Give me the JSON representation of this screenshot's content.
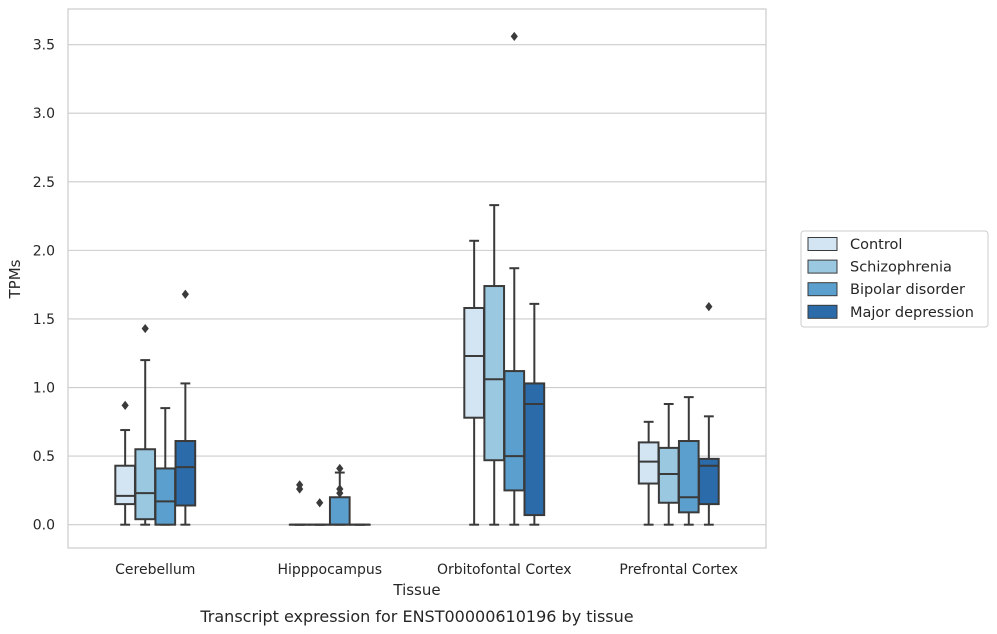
{
  "chart_data": {
    "type": "boxplot",
    "caption": "Transcript expression for ENST00000610196 by tissue",
    "xlabel": "Tissue",
    "ylabel": "TPMs",
    "ylim": [
      -0.17,
      3.76
    ],
    "yticks": [
      0.0,
      0.5,
      1.0,
      1.5,
      2.0,
      2.5,
      3.0,
      3.5
    ],
    "ytick_labels": [
      "0.0",
      "0.5",
      "1.0",
      "1.5",
      "2.0",
      "2.5",
      "3.0",
      "3.5"
    ],
    "grid": "horizontal",
    "legend_position": "right",
    "categories": [
      "Cerebellum",
      "Hipppocampus",
      "Orbitofontal Cortex",
      "Prefrontal Cortex"
    ],
    "series": [
      {
        "name": "Control",
        "color": "#d3e4f3",
        "boxes": [
          {
            "whislo": 0.0,
            "q1": 0.15,
            "med": 0.21,
            "q3": 0.43,
            "whishi": 0.69,
            "fliers": [
              0.87
            ]
          },
          {
            "whislo": 0.0,
            "q1": 0.0,
            "med": 0.0,
            "q3": 0.0,
            "whishi": 0.0,
            "fliers": [
              0.26,
              0.29
            ]
          },
          {
            "whislo": 0.0,
            "q1": 0.78,
            "med": 1.23,
            "q3": 1.58,
            "whishi": 2.07,
            "fliers": []
          },
          {
            "whislo": 0.0,
            "q1": 0.3,
            "med": 0.46,
            "q3": 0.6,
            "whishi": 0.75,
            "fliers": []
          }
        ]
      },
      {
        "name": "Schizophrenia",
        "color": "#9ac8e0",
        "boxes": [
          {
            "whislo": 0.0,
            "q1": 0.04,
            "med": 0.23,
            "q3": 0.55,
            "whishi": 1.2,
            "fliers": [
              1.43
            ]
          },
          {
            "whislo": 0.0,
            "q1": 0.0,
            "med": 0.0,
            "q3": 0.0,
            "whishi": 0.0,
            "fliers": [
              0.16
            ]
          },
          {
            "whislo": 0.0,
            "q1": 0.47,
            "med": 1.06,
            "q3": 1.74,
            "whishi": 2.33,
            "fliers": []
          },
          {
            "whislo": 0.0,
            "q1": 0.16,
            "med": 0.37,
            "q3": 0.56,
            "whishi": 0.88,
            "fliers": []
          }
        ]
      },
      {
        "name": "Bipolar disorder",
        "color": "#5a9fcd",
        "boxes": [
          {
            "whislo": 0.0,
            "q1": 0.0,
            "med": 0.17,
            "q3": 0.41,
            "whishi": 0.85,
            "fliers": []
          },
          {
            "whislo": 0.0,
            "q1": 0.0,
            "med": 0.0,
            "q3": 0.2,
            "whishi": 0.38,
            "fliers": [
              0.23,
              0.26,
              0.41
            ]
          },
          {
            "whislo": 0.0,
            "q1": 0.25,
            "med": 0.5,
            "q3": 1.12,
            "whishi": 1.87,
            "fliers": [
              3.56
            ]
          },
          {
            "whislo": 0.0,
            "q1": 0.09,
            "med": 0.2,
            "q3": 0.61,
            "whishi": 0.93,
            "fliers": []
          }
        ]
      },
      {
        "name": "Major depression",
        "color": "#2b6ba9",
        "boxes": [
          {
            "whislo": 0.0,
            "q1": 0.14,
            "med": 0.42,
            "q3": 0.61,
            "whishi": 1.03,
            "fliers": [
              1.68
            ]
          },
          {
            "whislo": 0.0,
            "q1": 0.0,
            "med": 0.0,
            "q3": 0.0,
            "whishi": 0.0,
            "fliers": []
          },
          {
            "whislo": 0.0,
            "q1": 0.07,
            "med": 0.88,
            "q3": 1.03,
            "whishi": 1.61,
            "fliers": []
          },
          {
            "whislo": 0.0,
            "q1": 0.15,
            "med": 0.43,
            "q3": 0.48,
            "whishi": 0.79,
            "fliers": [
              1.59
            ]
          }
        ]
      }
    ]
  }
}
